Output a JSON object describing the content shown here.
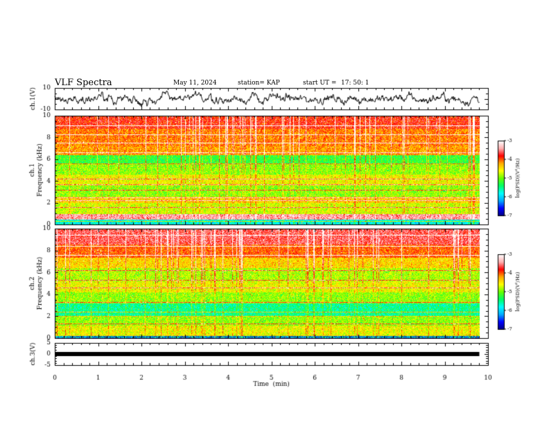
{
  "header": {
    "title": "VLF Spectra",
    "date": "May 11, 2024",
    "station": "station= KAP",
    "start_label": "start  UT  =",
    "start_time": "17: 50: 1"
  },
  "colors": {
    "colormap": [
      "#000080",
      "#0000ff",
      "#00aaff",
      "#00ffff",
      "#00ff66",
      "#66ff00",
      "#ffff00",
      "#ffaa00",
      "#ff0000",
      "#ffb0b0",
      "#ffffff"
    ],
    "trace": "#000000",
    "frame": "#000000"
  },
  "chart_data": [
    {
      "type": "line",
      "name": "ch1-waveform",
      "ylabel": "ch.1(V)",
      "ylim": [
        -10,
        10
      ],
      "yticks": [
        "10",
        "-10"
      ],
      "xlim": [
        0,
        10
      ],
      "description_level": "waveform oscillating mostly between about -5 and 5 V, extending to 9.8 min"
    },
    {
      "type": "heatmap",
      "name": "ch1-spectrogram",
      "ylabel": "ch.1\nFrequency (kHz)",
      "ylim": [
        0,
        10
      ],
      "yticks": [
        "0",
        "2",
        "4",
        "6",
        "8",
        "10"
      ],
      "xlim": [
        0,
        10
      ],
      "data_xmax": 9.8,
      "colorbar": {
        "label": "log(PSD)(V²/Hz)",
        "range": [
          -7,
          -3
        ],
        "ticks": [
          "-3",
          "-4",
          "-5",
          "-6",
          "-7"
        ]
      },
      "bands": [
        {
          "from": 0.0,
          "to": 0.5,
          "level": -5.8
        },
        {
          "from": 0.5,
          "to": 1.0,
          "level": -3.4
        },
        {
          "from": 1.0,
          "to": 2.0,
          "level": -4.7
        },
        {
          "from": 2.0,
          "to": 2.6,
          "level": -4.4
        },
        {
          "from": 2.6,
          "to": 3.6,
          "level": -4.9
        },
        {
          "from": 3.6,
          "to": 4.6,
          "level": -4.6
        },
        {
          "from": 4.6,
          "to": 5.6,
          "level": -4.9
        },
        {
          "from": 5.6,
          "to": 6.4,
          "level": -5.2
        },
        {
          "from": 6.4,
          "to": 7.2,
          "level": -4.2
        },
        {
          "from": 7.2,
          "to": 8.8,
          "level": -4.1
        },
        {
          "from": 8.8,
          "to": 10.0,
          "level": -3.8
        }
      ],
      "lines_khz": [
        0.3,
        1.6,
        2.2,
        2.5,
        3.2,
        3.7,
        4.2,
        5.6,
        6.6,
        7.5,
        8.3,
        9.1
      ]
    },
    {
      "type": "heatmap",
      "name": "ch2-spectrogram",
      "ylabel": "ch.2\nFrequency (kHz)",
      "ylim": [
        0,
        10
      ],
      "yticks": [
        "0",
        "2",
        "4",
        "6",
        "8",
        "10"
      ],
      "xlim": [
        0,
        10
      ],
      "data_xmax": 9.8,
      "colorbar": {
        "label": "log(PSD)(V²/Hz)",
        "range": [
          -7,
          -3
        ],
        "ticks": [
          "-3",
          "-4",
          "-5",
          "-6",
          "-7"
        ]
      },
      "bands": [
        {
          "from": 0.0,
          "to": 0.2,
          "level": -6.5
        },
        {
          "from": 0.2,
          "to": 1.2,
          "level": -4.6
        },
        {
          "from": 1.2,
          "to": 2.0,
          "level": -4.9
        },
        {
          "from": 2.0,
          "to": 3.2,
          "level": -5.5
        },
        {
          "from": 3.2,
          "to": 4.2,
          "level": -4.9
        },
        {
          "from": 4.2,
          "to": 5.2,
          "level": -4.6
        },
        {
          "from": 5.2,
          "to": 6.4,
          "level": -4.8
        },
        {
          "from": 6.4,
          "to": 7.4,
          "level": -4.4
        },
        {
          "from": 7.4,
          "to": 8.6,
          "level": -4.0
        },
        {
          "from": 8.6,
          "to": 10.0,
          "level": -3.6
        }
      ],
      "lines_khz": [
        0.1,
        1.3,
        2.0,
        2.4,
        3.3,
        4.6,
        5.3,
        6.2,
        7.6,
        8.4,
        9.4
      ]
    },
    {
      "type": "line",
      "name": "ch3-waveform",
      "ylabel": "ch.3(V)",
      "ylim": [
        -5,
        5
      ],
      "yticks": [
        "5",
        "0",
        "-5"
      ],
      "xlim": [
        0,
        10
      ],
      "xlabel": "Time  (min)",
      "xticks": [
        "0",
        "1",
        "2",
        "3",
        "4",
        "5",
        "6",
        "7",
        "8",
        "9",
        "10"
      ],
      "description_level": "dense signal band around 0 V from about -0.6 to 0.6 V"
    }
  ]
}
